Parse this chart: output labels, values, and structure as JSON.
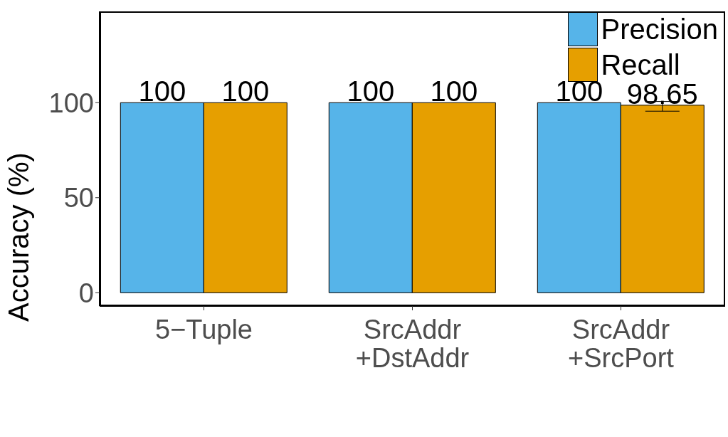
{
  "chart_data": {
    "type": "bar",
    "ylabel": "Accuracy (%)",
    "categories": [
      "5−Tuple",
      "SrcAddr\n+DstAddr",
      "SrcAddr\n+SrcPort"
    ],
    "series": [
      {
        "name": "Precision",
        "color": "#56b4e9",
        "values": [
          100,
          100,
          100
        ]
      },
      {
        "name": "Recall",
        "color": "#e69f00",
        "values": [
          100,
          100,
          98.65
        ],
        "errors": [
          null,
          null,
          [
            95.5,
            100.6
          ]
        ]
      }
    ],
    "ylim": [
      -7,
      148
    ],
    "yticks": [
      0,
      50,
      100
    ],
    "data_labels": true,
    "grid": false,
    "legend": "top right"
  }
}
